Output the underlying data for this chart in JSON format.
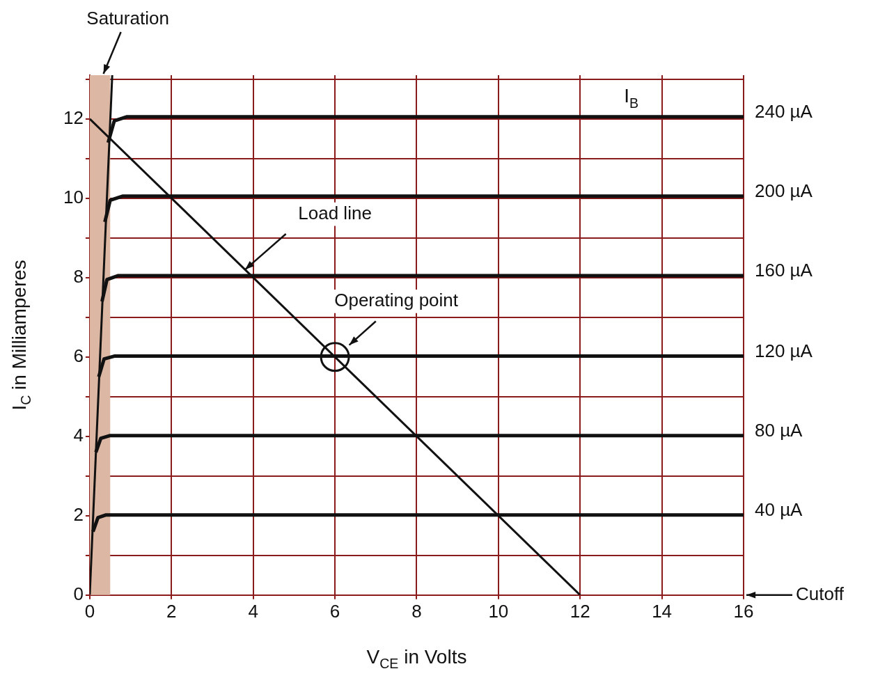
{
  "chart_data": {
    "type": "line",
    "xlabel": "V$_{CE}$ in Volts",
    "ylabel": "I$_{C}$ in Milliamperes",
    "xlim": [
      0,
      16
    ],
    "xticks": [
      0,
      2,
      4,
      6,
      8,
      10,
      12,
      14,
      16
    ],
    "ylim": [
      0,
      13.1
    ],
    "yticks": [
      0,
      {
        "value": 1,
        "label": null
      },
      2,
      {
        "value": 3,
        "label": null
      },
      4,
      {
        "value": 5,
        "label": null
      },
      6,
      {
        "value": 7,
        "label": null
      },
      8,
      {
        "value": 9,
        "label": null
      },
      10,
      {
        "value": 11,
        "label": null
      },
      12,
      {
        "value": 13,
        "label": null
      }
    ],
    "grid": true,
    "legend": false,
    "marker": "none",
    "line_style": "solid",
    "series": [
      {
        "name": "240 µA",
        "color": "#111111",
        "x": [
          0.45,
          0.6,
          0.9,
          16
        ],
        "values": [
          11.4,
          11.95,
          12.05,
          12.05
        ]
      },
      {
        "name": "200 µA",
        "color": "#111111",
        "x": [
          0.37,
          0.5,
          0.8,
          16
        ],
        "values": [
          9.4,
          9.95,
          10.05,
          10.05
        ]
      },
      {
        "name": "160 µA",
        "color": "#111111",
        "x": [
          0.3,
          0.42,
          0.7,
          16
        ],
        "values": [
          7.4,
          7.95,
          8.05,
          8.05
        ]
      },
      {
        "name": "120 µA",
        "color": "#111111",
        "x": [
          0.22,
          0.35,
          0.6,
          16
        ],
        "values": [
          5.5,
          5.95,
          6.02,
          6.02
        ]
      },
      {
        "name": "80 µA",
        "color": "#111111",
        "x": [
          0.15,
          0.27,
          0.5,
          16
        ],
        "values": [
          3.6,
          3.95,
          4.02,
          4.02
        ]
      },
      {
        "name": "40 µA",
        "color": "#111111",
        "x": [
          0.08,
          0.2,
          0.4,
          16
        ],
        "values": [
          1.6,
          1.95,
          2.02,
          2.02
        ]
      },
      {
        "color": "#111111",
        "x": [
          0,
          0.55
        ],
        "values": [
          0,
          13.1
        ]
      },
      {
        "color": "#111111",
        "x": [
          0,
          12
        ],
        "values": [
          12,
          0
        ]
      },
      {
        "type": "scatter",
        "marker": "circle",
        "color": "#111111",
        "x": [
          6
        ],
        "values": [
          6
        ]
      }
    ],
    "bands": [
      {
        "axis": "x",
        "from": 0,
        "to": 0.5,
        "label": "Saturation",
        "color": "#dcb7a3"
      }
    ],
    "annotations": [
      "I$_{B}$",
      {
        "text": "Load line",
        "x": 3.8,
        "y": 8.2
      },
      "Operating point",
      "Cutoff"
    ]
  }
}
